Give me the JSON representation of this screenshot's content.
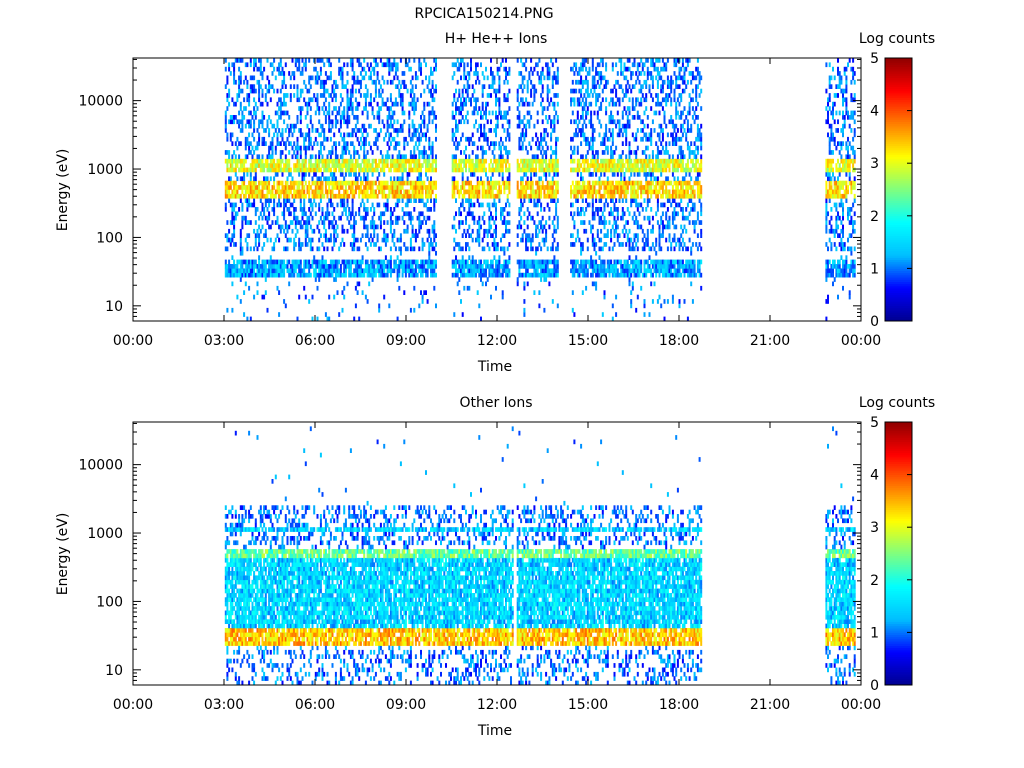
{
  "page_title": "RPCICA150214.PNG",
  "colors": {
    "colormap": [
      "#00008f",
      "#0000ff",
      "#00bfff",
      "#00ffff",
      "#7fff7f",
      "#ffff00",
      "#ff7f00",
      "#ff0000",
      "#8f0000"
    ]
  },
  "chart_data": [
    {
      "type": "heatmap",
      "title": "H+ He++ Ions",
      "xlabel": "Time",
      "ylabel": "Energy (eV)",
      "x_ticks": [
        "00:00",
        "03:00",
        "06:00",
        "09:00",
        "12:00",
        "15:00",
        "18:00",
        "21:00",
        "00:00"
      ],
      "x_range_hours": [
        0,
        24
      ],
      "y_scale": "log",
      "y_range": [
        6,
        42000
      ],
      "y_ticks": [
        "10",
        "100",
        "1000",
        "10000"
      ],
      "y_tick_values": [
        10,
        100,
        1000,
        10000
      ],
      "colorbar": {
        "label": "Log counts",
        "ticks": [
          "0",
          "1",
          "2",
          "3",
          "4",
          "5"
        ],
        "range": [
          0,
          5
        ]
      },
      "data_intervals_hours": [
        [
          3.0,
          18.7
        ],
        [
          22.8,
          23.8
        ]
      ],
      "data_gaps_hours": [
        [
          10.0,
          10.5
        ],
        [
          12.4,
          12.6
        ],
        [
          14.0,
          14.4
        ]
      ],
      "bands": [
        {
          "energy_low": 900,
          "energy_high": 1400,
          "log_counts": 3.0
        },
        {
          "energy_low": 350,
          "energy_high": 700,
          "log_counts": 3.3
        },
        {
          "energy_low": 28,
          "energy_high": 45,
          "log_counts": 1.2
        }
      ]
    },
    {
      "type": "heatmap",
      "title": "Other Ions",
      "xlabel": "Time",
      "ylabel": "Energy (eV)",
      "x_ticks": [
        "00:00",
        "03:00",
        "06:00",
        "09:00",
        "12:00",
        "15:00",
        "18:00",
        "21:00",
        "00:00"
      ],
      "x_range_hours": [
        0,
        24
      ],
      "y_scale": "log",
      "y_range": [
        6,
        42000
      ],
      "y_ticks": [
        "10",
        "100",
        "1000",
        "10000"
      ],
      "y_tick_values": [
        10,
        100,
        1000,
        10000
      ],
      "colorbar": {
        "label": "Log counts",
        "ticks": [
          "0",
          "1",
          "2",
          "3",
          "4",
          "5"
        ],
        "range": [
          0,
          5
        ]
      },
      "data_intervals_hours": [
        [
          3.0,
          18.7
        ],
        [
          22.8,
          23.8
        ]
      ],
      "data_gaps_hours": [
        [
          12.5,
          12.6
        ]
      ],
      "bands": [
        {
          "energy_low": 22,
          "energy_high": 40,
          "log_counts": 3.4
        },
        {
          "energy_low": 40,
          "energy_high": 600,
          "log_counts": 1.5
        },
        {
          "energy_low": 420,
          "energy_high": 620,
          "log_counts": 2.4
        },
        {
          "energy_low": 1000,
          "energy_high": 1300,
          "log_counts": 1.5
        }
      ]
    }
  ]
}
